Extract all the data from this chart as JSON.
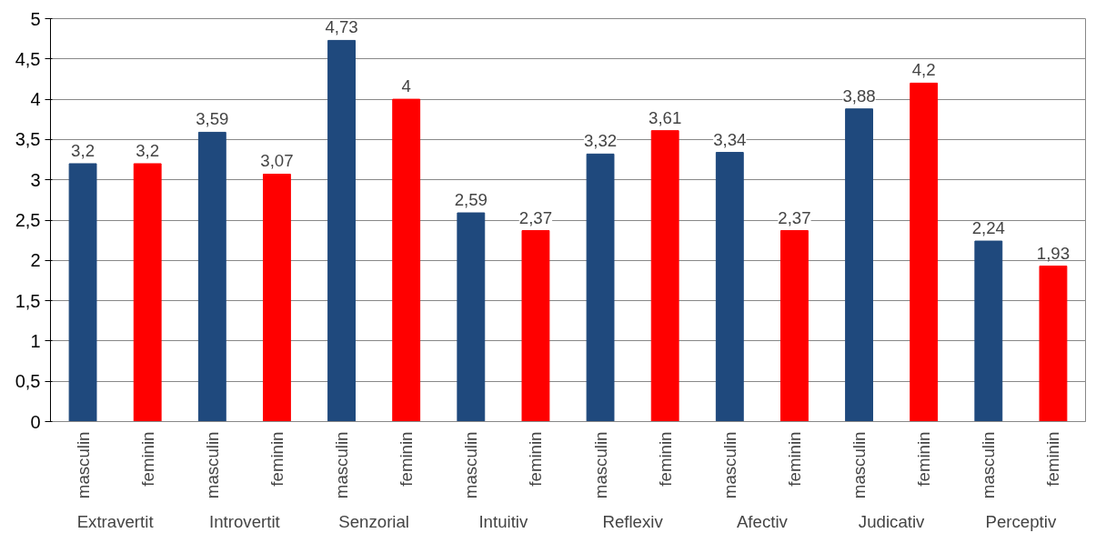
{
  "chart_data": {
    "type": "bar",
    "categories": [
      "masculin",
      "feminin",
      "masculin",
      "feminin",
      "masculin",
      "feminin",
      "masculin",
      "feminin",
      "masculin",
      "feminin",
      "masculin",
      "feminin",
      "masculin",
      "feminin",
      "masculin",
      "feminin"
    ],
    "values": [
      3.2,
      3.2,
      3.59,
      3.07,
      4.73,
      4,
      2.59,
      2.37,
      3.32,
      3.61,
      3.34,
      2.37,
      3.88,
      4.2,
      2.24,
      1.93
    ],
    "value_labels": [
      "3,2",
      "3,2",
      "3,59",
      "3,07",
      "4,73",
      "4",
      "2,59",
      "2,37",
      "3,32",
      "3,61",
      "3,34",
      "2,37",
      "3,88",
      "4,2",
      "2,24",
      "1,93"
    ],
    "colors": [
      "#1f497d",
      "#ff0000",
      "#1f497d",
      "#ff0000",
      "#1f497d",
      "#ff0000",
      "#1f497d",
      "#ff0000",
      "#1f497d",
      "#ff0000",
      "#1f497d",
      "#ff0000",
      "#1f497d",
      "#ff0000",
      "#1f497d",
      "#ff0000"
    ],
    "annotations": [
      "Extravertit",
      "Introvertit",
      "Senzorial",
      "Intuitiv",
      "Reflexiv",
      "Afectiv",
      "Judicativ",
      "Perceptiv"
    ],
    "ylim": [
      0,
      5
    ],
    "yticks": [
      0,
      {
        "value": 0.5,
        "label": "0,5"
      },
      1,
      {
        "value": 1.5,
        "label": "1,5"
      },
      2,
      {
        "value": 2.5,
        "label": "2,5"
      },
      3,
      {
        "value": 3.5,
        "label": "3,5"
      },
      4,
      {
        "value": 4.5,
        "label": "4,5"
      },
      5
    ],
    "grid": "y"
  }
}
